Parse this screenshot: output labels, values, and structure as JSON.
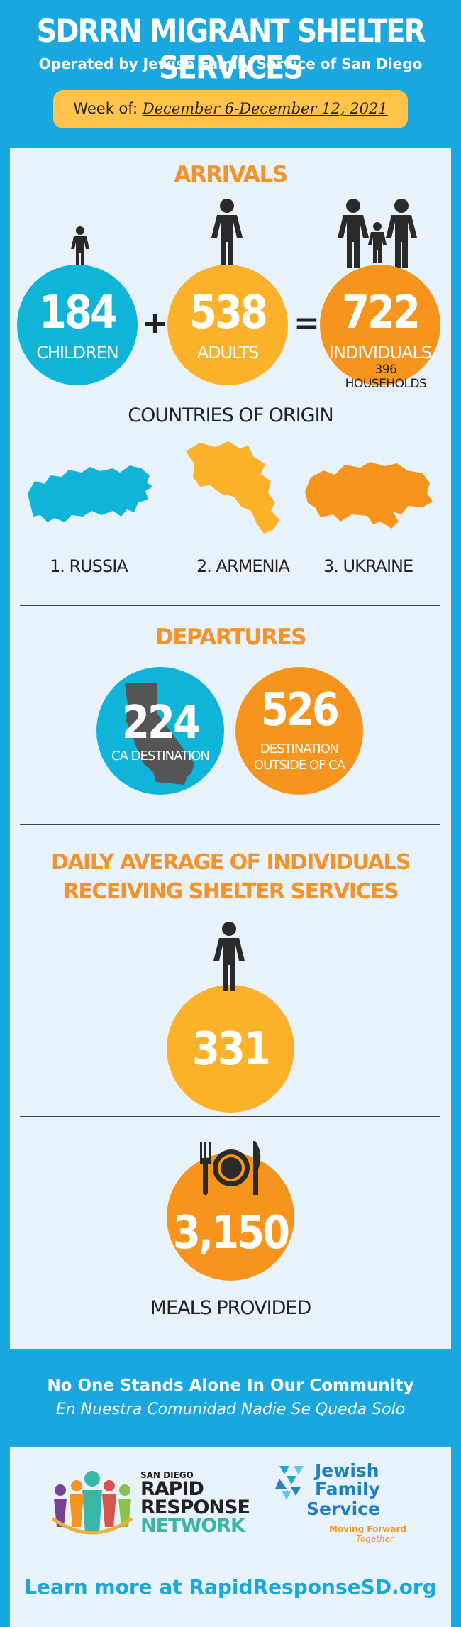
{
  "header": {
    "title": "SDRRN MIGRANT SHELTER SERVICES",
    "subtitle": "Operated by Jewish Family Service of San Diego",
    "week_prefix": "Week of:",
    "week_dates": "December 6-December 12, 2021"
  },
  "arrivals": {
    "title": "ARRIVALS",
    "children": {
      "value": "184",
      "label": "CHILDREN"
    },
    "plus": "+",
    "adults": {
      "value": "538",
      "label": "ADULTS"
    },
    "equals": "=",
    "individuals": {
      "value": "722",
      "label": "INDIVIDUALS"
    },
    "households": "396 HOUSEHOLDS"
  },
  "countries": {
    "title": "COUNTRIES OF ORIGIN",
    "items": [
      "1. RUSSIA",
      "2. ARMENIA",
      "3. UKRAINE"
    ]
  },
  "departures": {
    "title": "DEPARTURES",
    "ca": {
      "value": "224",
      "label": "CA DESTINATION"
    },
    "outside": {
      "value": "526",
      "label_line1": "DESTINATION",
      "label_line2": "OUTSIDE OF CA"
    }
  },
  "daily": {
    "title_line1": "DAILY AVERAGE OF INDIVIDUALS",
    "title_line2": "RECEIVING SHELTER SERVICES",
    "value": "331"
  },
  "meals": {
    "value": "3,150",
    "label": "MEALS PROVIDED"
  },
  "footer": {
    "line1": "No One Stands Alone In Our Community",
    "line2": "En Nuestra Comunidad Nadie Se Queda Solo",
    "sdrrn_small": "SAN DIEGO",
    "sdrrn_l1": "RAPID",
    "sdrrn_l2": "RESPONSE",
    "sdrrn_l3": "NETWORK",
    "jfs_l1": "Jewish",
    "jfs_l2": "Family",
    "jfs_l3": "Service",
    "jfs_tag1": "Moving Forward",
    "jfs_tag2": "Together",
    "learn": "Learn more at RapidResponseSD.org"
  },
  "colors": {
    "background": "#1aa7e0",
    "panel": "#e8f2fa",
    "cyan": "#10b4d8",
    "yellow": "#fbb22a",
    "orange": "#f7941d",
    "week_box": "#ffc24a"
  }
}
